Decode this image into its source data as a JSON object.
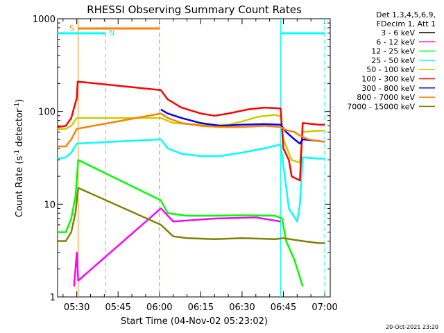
{
  "chart_data": {
    "type": "line",
    "title": "RHESSI Observing Summary Count Rates",
    "xlabel": "Start Time (04-Nov-02 05:23:02)",
    "ylabel_main": "Count Rate (s",
    "ylabel_sup1": "-1",
    "ylabel_mid": " detector",
    "ylabel_sup2": "-1",
    "ylabel_end": ")",
    "y_scale": "log",
    "ylim": [
      1,
      1000
    ],
    "xlim": [
      "05:23:02",
      "07:02:00"
    ],
    "x_ticks": [
      "05:30",
      "05:45",
      "06:00",
      "06:15",
      "06:30",
      "06:45",
      "07:00"
    ],
    "y_ticks": [
      {
        "value": 1,
        "label": "1"
      },
      {
        "value": 10,
        "label": "10"
      },
      {
        "value": 100,
        "label": "100"
      },
      {
        "value": 1000,
        "label": "1000"
      }
    ],
    "legend_header": [
      "Det 1,3,4,5,6,9,",
      "FDecim 1, Att 1"
    ],
    "series": [
      {
        "name": "3 - 6 keV",
        "color": "#000000",
        "points": [
          [
            "05:23:02",
            null
          ]
        ]
      },
      {
        "name": "6 - 12 keV",
        "color": "#ff00ff",
        "points": [
          [
            "05:29:00",
            1.3
          ],
          [
            "05:30:00",
            3.0
          ],
          [
            "05:30:30",
            1.5
          ],
          [
            "06:00:30",
            9.0
          ],
          [
            "06:05:00",
            6.5
          ],
          [
            "06:20:00",
            7.0
          ],
          [
            "06:35:00",
            7.2
          ],
          [
            "06:44:00",
            6.5
          ]
        ]
      },
      {
        "name": "12 - 25 keV",
        "color": "#00ff00",
        "points": [
          [
            "05:23:02",
            5.0
          ],
          [
            "05:26:00",
            5.0
          ],
          [
            "05:28:00",
            7.0
          ],
          [
            "05:29:30",
            12.0
          ],
          [
            "05:30:30",
            30.0
          ],
          [
            "06:00:30",
            11.0
          ],
          [
            "06:03:00",
            8.0
          ],
          [
            "06:10:00",
            7.5
          ],
          [
            "06:20:00",
            7.5
          ],
          [
            "06:30:00",
            7.6
          ],
          [
            "06:42:00",
            7.5
          ],
          [
            "06:44:30",
            7.0
          ],
          [
            "06:46:00",
            4.0
          ],
          [
            "06:49:00",
            2.5
          ],
          [
            "06:52:00",
            1.3
          ]
        ]
      },
      {
        "name": "25 - 50 keV",
        "color": "#00ffff",
        "points": [
          [
            "05:23:02",
            31.0
          ],
          [
            "05:26:00",
            32.0
          ],
          [
            "05:28:00",
            36.0
          ],
          [
            "05:30:00",
            45.0
          ],
          [
            "06:00:30",
            50.0
          ],
          [
            "06:03:00",
            40.0
          ],
          [
            "06:08:00",
            35.0
          ],
          [
            "06:15:00",
            33.0
          ],
          [
            "06:22:00",
            33.0
          ],
          [
            "06:30:00",
            36.0
          ],
          [
            "06:38:00",
            40.0
          ],
          [
            "06:44:00",
            44.0
          ],
          [
            "06:45:30",
            20.0
          ],
          [
            "06:47:00",
            9.0
          ],
          [
            "06:50:00",
            6.5
          ],
          [
            "06:51:00",
            10.0
          ],
          [
            "06:52:00",
            32.0
          ],
          [
            "06:58:00",
            31.0
          ],
          [
            "07:00:00",
            31.0
          ]
        ]
      },
      {
        "name": "50 - 100 keV",
        "color": "#cccc00",
        "points": [
          [
            "05:23:02",
            65.0
          ],
          [
            "05:26:00",
            65.0
          ],
          [
            "05:28:00",
            70.0
          ],
          [
            "05:30:00",
            85.0
          ],
          [
            "06:00:30",
            85.0
          ],
          [
            "06:05:00",
            75.0
          ],
          [
            "06:15:00",
            72.0
          ],
          [
            "06:25:00",
            72.0
          ],
          [
            "06:30:00",
            78.0
          ],
          [
            "06:36:00",
            88.0
          ],
          [
            "06:42:00",
            92.0
          ],
          [
            "06:44:00",
            88.0
          ],
          [
            "06:45:00",
            50.0
          ],
          [
            "06:48:00",
            30.0
          ],
          [
            "06:51:00",
            28.0
          ],
          [
            "06:52:00",
            60.0
          ],
          [
            "06:58:00",
            62.0
          ],
          [
            "07:00:00",
            62.0
          ]
        ]
      },
      {
        "name": "100 - 300 keV",
        "color": "#ff0000",
        "points": [
          [
            "05:23:02",
            68.0
          ],
          [
            "05:26:00",
            70.0
          ],
          [
            "05:28:00",
            85.0
          ],
          [
            "05:30:00",
            140.0
          ],
          [
            "05:30:20",
            210.0
          ],
          [
            "06:00:30",
            170.0
          ],
          [
            "06:03:00",
            135.0
          ],
          [
            "06:08:00",
            110.0
          ],
          [
            "06:15:00",
            95.0
          ],
          [
            "06:20:00",
            90.0
          ],
          [
            "06:25:00",
            95.0
          ],
          [
            "06:32:00",
            105.0
          ],
          [
            "06:38:00",
            110.0
          ],
          [
            "06:44:00",
            108.0
          ],
          [
            "06:45:00",
            40.0
          ],
          [
            "06:47:00",
            30.0
          ],
          [
            "06:48:00",
            20.0
          ],
          [
            "06:51:00",
            18.0
          ],
          [
            "06:52:00",
            75.0
          ],
          [
            "06:58:00",
            72.0
          ],
          [
            "07:00:00",
            72.0
          ]
        ]
      },
      {
        "name": "300 - 800 keV",
        "color": "#0000ff",
        "points": [
          [
            "06:00:30",
            105.0
          ],
          [
            "06:03:00",
            95.0
          ],
          [
            "06:08:00",
            85.0
          ],
          [
            "06:15:00",
            75.0
          ],
          [
            "06:22:00",
            70.0
          ],
          [
            "06:30:00",
            72.0
          ],
          [
            "06:38:00",
            73.0
          ],
          [
            "06:44:00",
            72.0
          ],
          [
            "06:46:00",
            60.0
          ],
          [
            "06:49:00",
            50.0
          ],
          [
            "06:51:00",
            45.0
          ],
          [
            "06:52:00",
            50.0
          ],
          [
            "06:58:00",
            48.0
          ],
          [
            "07:00:00",
            47.0
          ]
        ]
      },
      {
        "name": "800 - 7000 keV",
        "color": "#ff8000",
        "points": [
          [
            "05:23:02",
            42.0
          ],
          [
            "05:26:00",
            42.0
          ],
          [
            "05:28:00",
            50.0
          ],
          [
            "05:30:00",
            65.0
          ],
          [
            "06:00:30",
            95.0
          ],
          [
            "06:03:00",
            85.0
          ],
          [
            "06:08:00",
            75.0
          ],
          [
            "06:15:00",
            70.0
          ],
          [
            "06:22:00",
            68.0
          ],
          [
            "06:30:00",
            68.0
          ],
          [
            "06:38:00",
            70.0
          ],
          [
            "06:44:00",
            68.0
          ],
          [
            "06:46:00",
            63.0
          ],
          [
            "06:49:00",
            60.0
          ],
          [
            "06:51:00",
            55.0
          ],
          [
            "06:54:00",
            50.0
          ],
          [
            "06:58:00",
            48.0
          ],
          [
            "07:00:00",
            47.0
          ]
        ]
      },
      {
        "name": "7000 - 15000 keV",
        "color": "#808000",
        "points": [
          [
            "05:23:02",
            4.0
          ],
          [
            "05:26:00",
            4.0
          ],
          [
            "05:28:00",
            5.0
          ],
          [
            "05:29:30",
            8.0
          ],
          [
            "05:30:30",
            15.0
          ],
          [
            "06:00:30",
            6.0
          ],
          [
            "06:05:00",
            4.5
          ],
          [
            "06:10:00",
            4.3
          ],
          [
            "06:20:00",
            4.2
          ],
          [
            "06:30:00",
            4.3
          ],
          [
            "06:42:00",
            4.2
          ],
          [
            "06:45:00",
            4.3
          ],
          [
            "06:52:00",
            4.0
          ],
          [
            "06:58:00",
            3.8
          ],
          [
            "07:00:00",
            3.8
          ]
        ]
      }
    ],
    "annotations": {
      "attenuator_bar_label": "S",
      "night_bar_label": "N",
      "attenuator_bar_color": "#ff8000",
      "night_bar_color": "#00ffff",
      "attenuator_bar_segment": [
        "05:30:30",
        "06:00:00"
      ],
      "night_bar_segments": [
        [
          "05:23:02",
          "05:40:30"
        ],
        [
          "06:44:00",
          "07:00:00"
        ]
      ],
      "vertical_markers": [
        {
          "time": "05:30:30",
          "color": "#ff8000",
          "style": "solid"
        },
        {
          "time": "05:40:30",
          "color": "#00ffff",
          "style": "dashed"
        },
        {
          "time": "06:00:00",
          "color": "#ff8000",
          "style": "dashed"
        },
        {
          "time": "06:44:00",
          "color": "#00ffff",
          "style": "solid"
        },
        {
          "time": "07:00:00",
          "color": "#00ffff",
          "style": "dashed"
        }
      ]
    },
    "footer_date": "20-Oct-2021 23:20"
  }
}
